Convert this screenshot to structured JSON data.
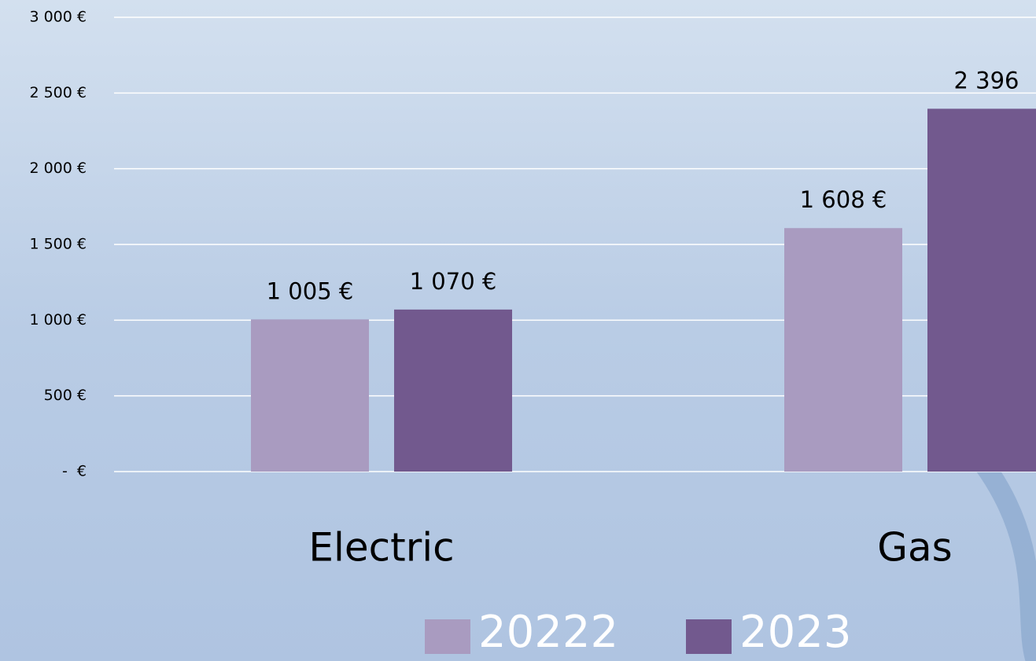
{
  "chart_data": {
    "type": "bar",
    "categories": [
      "Electric",
      "Gas"
    ],
    "series": [
      {
        "name": "20222",
        "color": "#a99bc0",
        "values": [
          1005,
          1608
        ],
        "value_labels": [
          "1 005 €",
          "1 608 €"
        ]
      },
      {
        "name": "2023",
        "color": "#72598e",
        "values": [
          1070,
          2396
        ],
        "value_labels": [
          "1 070 €",
          "2 396"
        ]
      }
    ],
    "ylim": [
      0,
      3000
    ],
    "yticks": [
      {
        "value": 0,
        "label": "-  €"
      },
      {
        "value": 500,
        "label": "500 €"
      },
      {
        "value": 1000,
        "label": "1 000 €"
      },
      {
        "value": 1500,
        "label": "1 500 €"
      },
      {
        "value": 2000,
        "label": "2 000 €"
      },
      {
        "value": 2500,
        "label": "2 500 €"
      },
      {
        "value": 3000,
        "label": "3 000 €"
      }
    ],
    "grid": true,
    "legend": "bottom"
  }
}
